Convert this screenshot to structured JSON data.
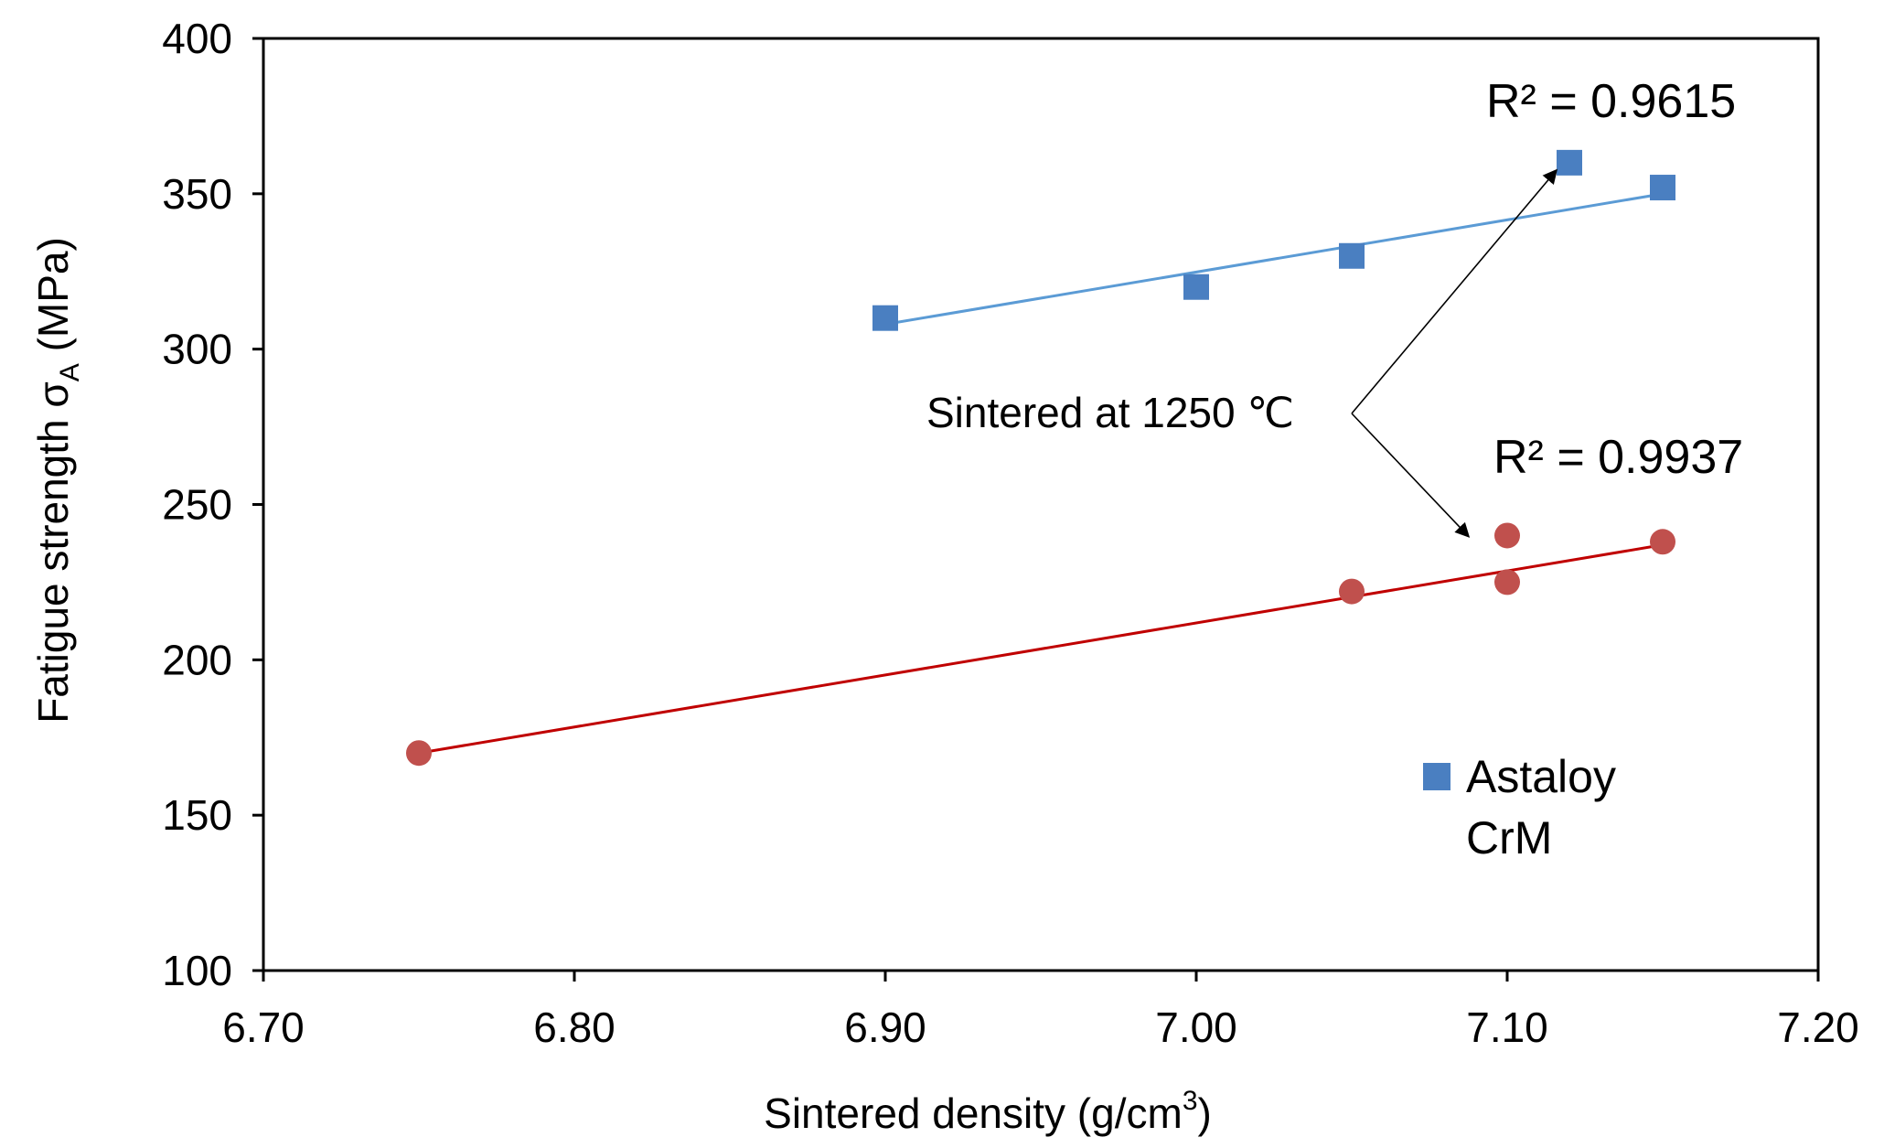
{
  "chart_data": {
    "type": "scatter",
    "title": "",
    "xlabel": "Sintered density (g/cm3)",
    "xlabel_main": "Sintered density (g/cm",
    "xlabel_sup": "3",
    "xlabel_close": ")",
    "ylabel_main": "Fatigue strength σ",
    "ylabel_sub": "A",
    "ylabel_units": " (MPa)",
    "xlim": [
      6.7,
      7.2
    ],
    "ylim": [
      100,
      400
    ],
    "xticks": [
      6.7,
      6.8,
      6.9,
      7.0,
      7.1,
      7.2
    ],
    "xtick_labels": [
      "6.70",
      "6.80",
      "6.90",
      "7.00",
      "7.10",
      "7.20"
    ],
    "yticks": [
      100,
      150,
      200,
      250,
      300,
      350,
      400
    ],
    "ytick_labels": [
      "100",
      "150",
      "200",
      "250",
      "300",
      "350",
      "400"
    ],
    "grid": false,
    "series": [
      {
        "name": "Astaloy CrM",
        "marker": "square",
        "color": "#4a7fc1",
        "line_color": "#5b9bd5",
        "x": [
          6.9,
          7.0,
          7.05,
          7.12,
          7.15
        ],
        "y": [
          310,
          320,
          330,
          360,
          352
        ],
        "trendline": {
          "x": [
            6.9,
            7.15
          ],
          "y": [
            308,
            350
          ]
        },
        "r2_label": "R² = 0.9615"
      },
      {
        "name": "",
        "marker": "circle",
        "color": "#c0504d",
        "line_color": "#c00000",
        "x": [
          6.75,
          7.05,
          7.1,
          7.1,
          7.15
        ],
        "y": [
          170,
          222,
          225,
          240,
          238
        ],
        "trendline": {
          "x": [
            6.75,
            7.15
          ],
          "y": [
            170,
            237
          ]
        },
        "r2_label": "R² = 0.9937"
      }
    ],
    "annotation": {
      "text": "Sintered at 1250 ℃",
      "targets": [
        {
          "x": 7.12,
          "y": 360
        },
        {
          "x": 7.09,
          "y": 242
        }
      ]
    },
    "legend": {
      "position": "bottom-right",
      "line1": "Astaloy",
      "line2": "CrM"
    }
  }
}
